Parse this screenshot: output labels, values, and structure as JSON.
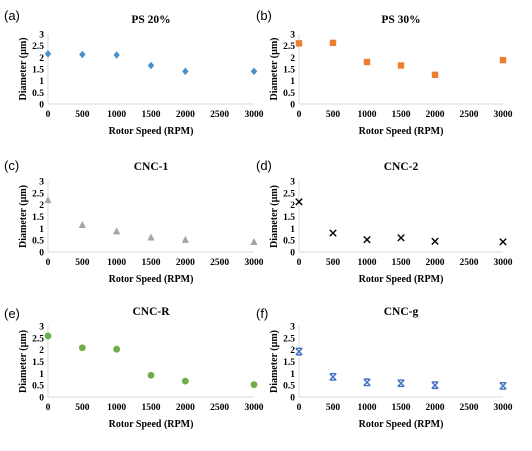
{
  "figure": {
    "panels": [
      {
        "letter": "(a)"
      },
      {
        "letter": "(b)"
      },
      {
        "letter": "(c)"
      },
      {
        "letter": "(d)"
      },
      {
        "letter": "(e)"
      },
      {
        "letter": "(f)"
      }
    ]
  },
  "chart_data": [
    {
      "type": "scatter",
      "title": "PS 20%",
      "xlabel": "Rotor Speed (RPM)",
      "ylabel": "Diameter (µm)",
      "xlim": [
        0,
        3000
      ],
      "ylim": [
        0,
        3
      ],
      "xticks": [
        0,
        500,
        1000,
        1500,
        2000,
        2500,
        3000
      ],
      "yticks": [
        0,
        0.5,
        1,
        1.5,
        2,
        2.5,
        3
      ],
      "grid": false,
      "marker": "diamond",
      "color": "#4a90c8",
      "x": [
        0,
        500,
        1000,
        1500,
        2000,
        3000
      ],
      "y": [
        2.15,
        2.12,
        2.1,
        1.65,
        1.4,
        1.4
      ]
    },
    {
      "type": "scatter",
      "title": "PS 30%",
      "xlabel": "Rotor Speed (RPM)",
      "ylabel": "Diameter (µm)",
      "xlim": [
        0,
        3000
      ],
      "ylim": [
        0,
        3
      ],
      "xticks": [
        0,
        500,
        1000,
        1500,
        2000,
        2500,
        3000
      ],
      "yticks": [
        0,
        0.5,
        1,
        1.5,
        2,
        2.5,
        3
      ],
      "grid": false,
      "marker": "square",
      "color": "#ed7d31",
      "x": [
        0,
        500,
        1000,
        1500,
        2000,
        3000
      ],
      "y": [
        2.6,
        2.62,
        1.8,
        1.65,
        1.25,
        1.88
      ]
    },
    {
      "type": "scatter",
      "title": "CNC-1",
      "xlabel": "Rotor Speed (RPM)",
      "ylabel": "Diameter (µm)",
      "xlim": [
        0,
        3000
      ],
      "ylim": [
        0,
        3
      ],
      "xticks": [
        0,
        500,
        1000,
        1500,
        2000,
        2500,
        3000
      ],
      "yticks": [
        0,
        0.5,
        1,
        1.5,
        2,
        2.5,
        3
      ],
      "grid": false,
      "marker": "triangle",
      "color": "#a5a5a5",
      "x": [
        0,
        500,
        1000,
        1500,
        2000,
        3000
      ],
      "y": [
        2.2,
        1.15,
        0.88,
        0.62,
        0.52,
        0.43
      ]
    },
    {
      "type": "scatter",
      "title": "CNC-2",
      "xlabel": "Rotor Speed (RPM)",
      "ylabel": "Diameter (µm)",
      "xlim": [
        0,
        3000
      ],
      "ylim": [
        0,
        3
      ],
      "xticks": [
        0,
        500,
        1000,
        1500,
        2000,
        2500,
        3000
      ],
      "yticks": [
        0,
        0.5,
        1,
        1.5,
        2,
        2.5,
        3
      ],
      "grid": false,
      "marker": "x",
      "color": "#000000",
      "x": [
        0,
        500,
        1000,
        1500,
        2000,
        3000
      ],
      "y": [
        2.12,
        0.8,
        0.52,
        0.6,
        0.45,
        0.43
      ]
    },
    {
      "type": "scatter",
      "title": "CNC-R",
      "xlabel": "Rotor Speed (RPM)",
      "ylabel": "Diameter (µm)",
      "xlim": [
        0,
        3000
      ],
      "ylim": [
        0,
        3
      ],
      "xticks": [
        0,
        500,
        1000,
        1500,
        2000,
        2500,
        3000
      ],
      "yticks": [
        0,
        0.5,
        1,
        1.5,
        2,
        2.5,
        3
      ],
      "grid": false,
      "marker": "circle",
      "color": "#70ad47",
      "x": [
        0,
        500,
        1000,
        1500,
        2000,
        3000
      ],
      "y": [
        2.58,
        2.08,
        2.02,
        0.92,
        0.67,
        0.52
      ]
    },
    {
      "type": "scatter",
      "title": "CNC-g",
      "xlabel": "Rotor Speed (RPM)",
      "ylabel": "Diameter (µm)",
      "xlim": [
        0,
        3000
      ],
      "ylim": [
        0,
        3
      ],
      "xticks": [
        0,
        500,
        1000,
        1500,
        2000,
        2500,
        3000
      ],
      "yticks": [
        0,
        0.5,
        1,
        1.5,
        2,
        2.5,
        3
      ],
      "grid": false,
      "marker": "star",
      "color": "#4472c4",
      "x": [
        0,
        500,
        1000,
        1500,
        2000,
        3000
      ],
      "y": [
        1.92,
        0.85,
        0.62,
        0.58,
        0.5,
        0.47
      ]
    }
  ]
}
